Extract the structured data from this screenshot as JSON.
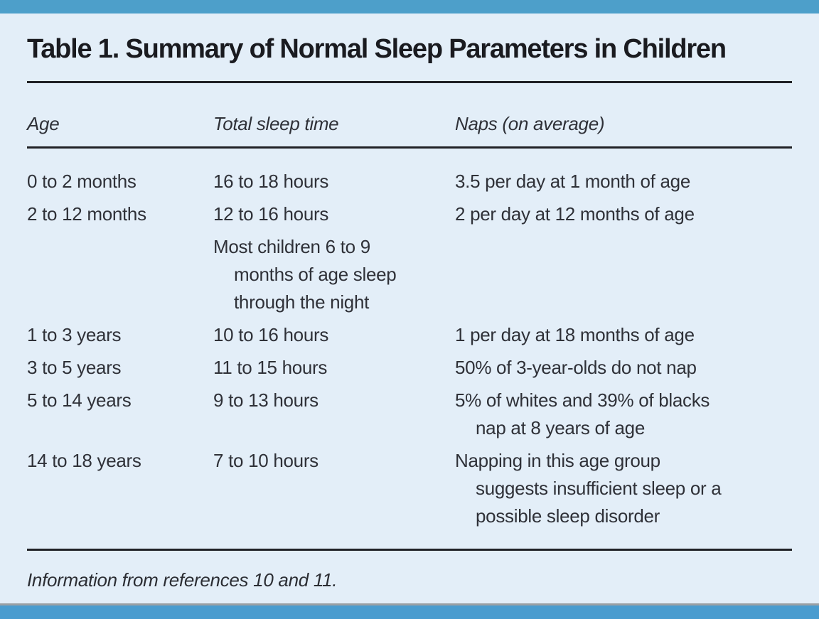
{
  "accent": {
    "top_bar_color": "#4d9fca",
    "bottom_bar_color": "#4a9ccf",
    "background_color": "#e3eef8",
    "rule_color": "#202126"
  },
  "table": {
    "title": "Table 1. Summary of Normal Sleep Parameters in Children",
    "columns": {
      "age": "Age",
      "total_sleep_time": "Total sleep time",
      "naps": "Naps (on average)"
    },
    "rows": [
      {
        "age": "0 to 2 months",
        "total_sleep_time": "16 to 18 hours",
        "naps": "3.5 per day at 1 month of age"
      },
      {
        "age": "2 to 12 months",
        "total_sleep_time": "12 to 16 hours",
        "naps": "2 per day at 12 months of age"
      },
      {
        "age": "",
        "total_sleep_time": "Most children 6 to 9\nmonths of age sleep\nthrough the night",
        "naps": ""
      },
      {
        "age": "1 to 3 years",
        "total_sleep_time": "10 to 16 hours",
        "naps": "1 per day at 18 months of age"
      },
      {
        "age": "3 to 5 years",
        "total_sleep_time": "11 to 15 hours",
        "naps": "50% of 3-year-olds do not nap"
      },
      {
        "age": "5 to 14 years",
        "total_sleep_time": "9 to 13 hours",
        "naps": "5% of whites and 39% of blacks\nnap at 8 years of age"
      },
      {
        "age": "14 to 18 years",
        "total_sleep_time": "7 to 10 hours",
        "naps": "Napping in this age group\nsuggests insufficient sleep or a\npossible sleep disorder"
      }
    ],
    "footnote": "Information from references 10 and 11."
  }
}
